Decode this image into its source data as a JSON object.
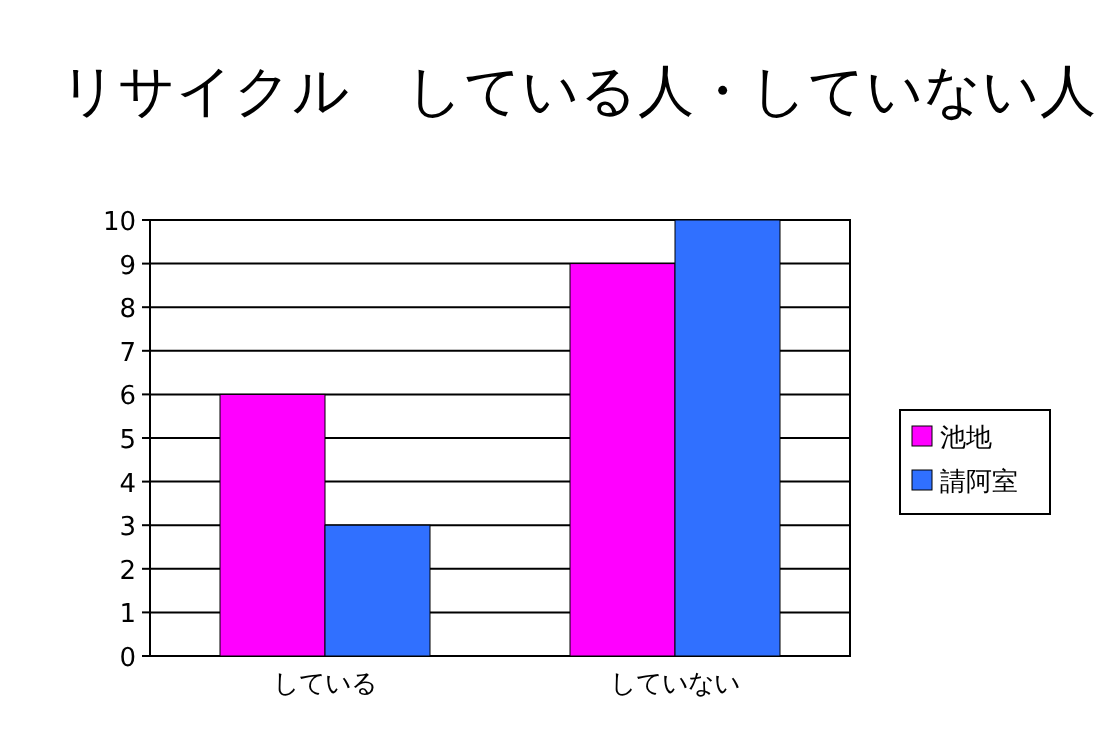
{
  "chart_data": {
    "type": "bar",
    "title": "リサイクル　している人・していない人",
    "categories": [
      "している",
      "していない"
    ],
    "series": [
      {
        "name": "池地",
        "color": "#ff00ff",
        "values": [
          6,
          9
        ]
      },
      {
        "name": "請阿室",
        "color": "#3070ff",
        "values": [
          3,
          10
        ]
      }
    ],
    "ylim": [
      0,
      10
    ],
    "yticks": [
      0,
      1,
      2,
      3,
      4,
      5,
      6,
      7,
      8,
      9,
      10
    ],
    "grid": "y",
    "legend": "right"
  }
}
